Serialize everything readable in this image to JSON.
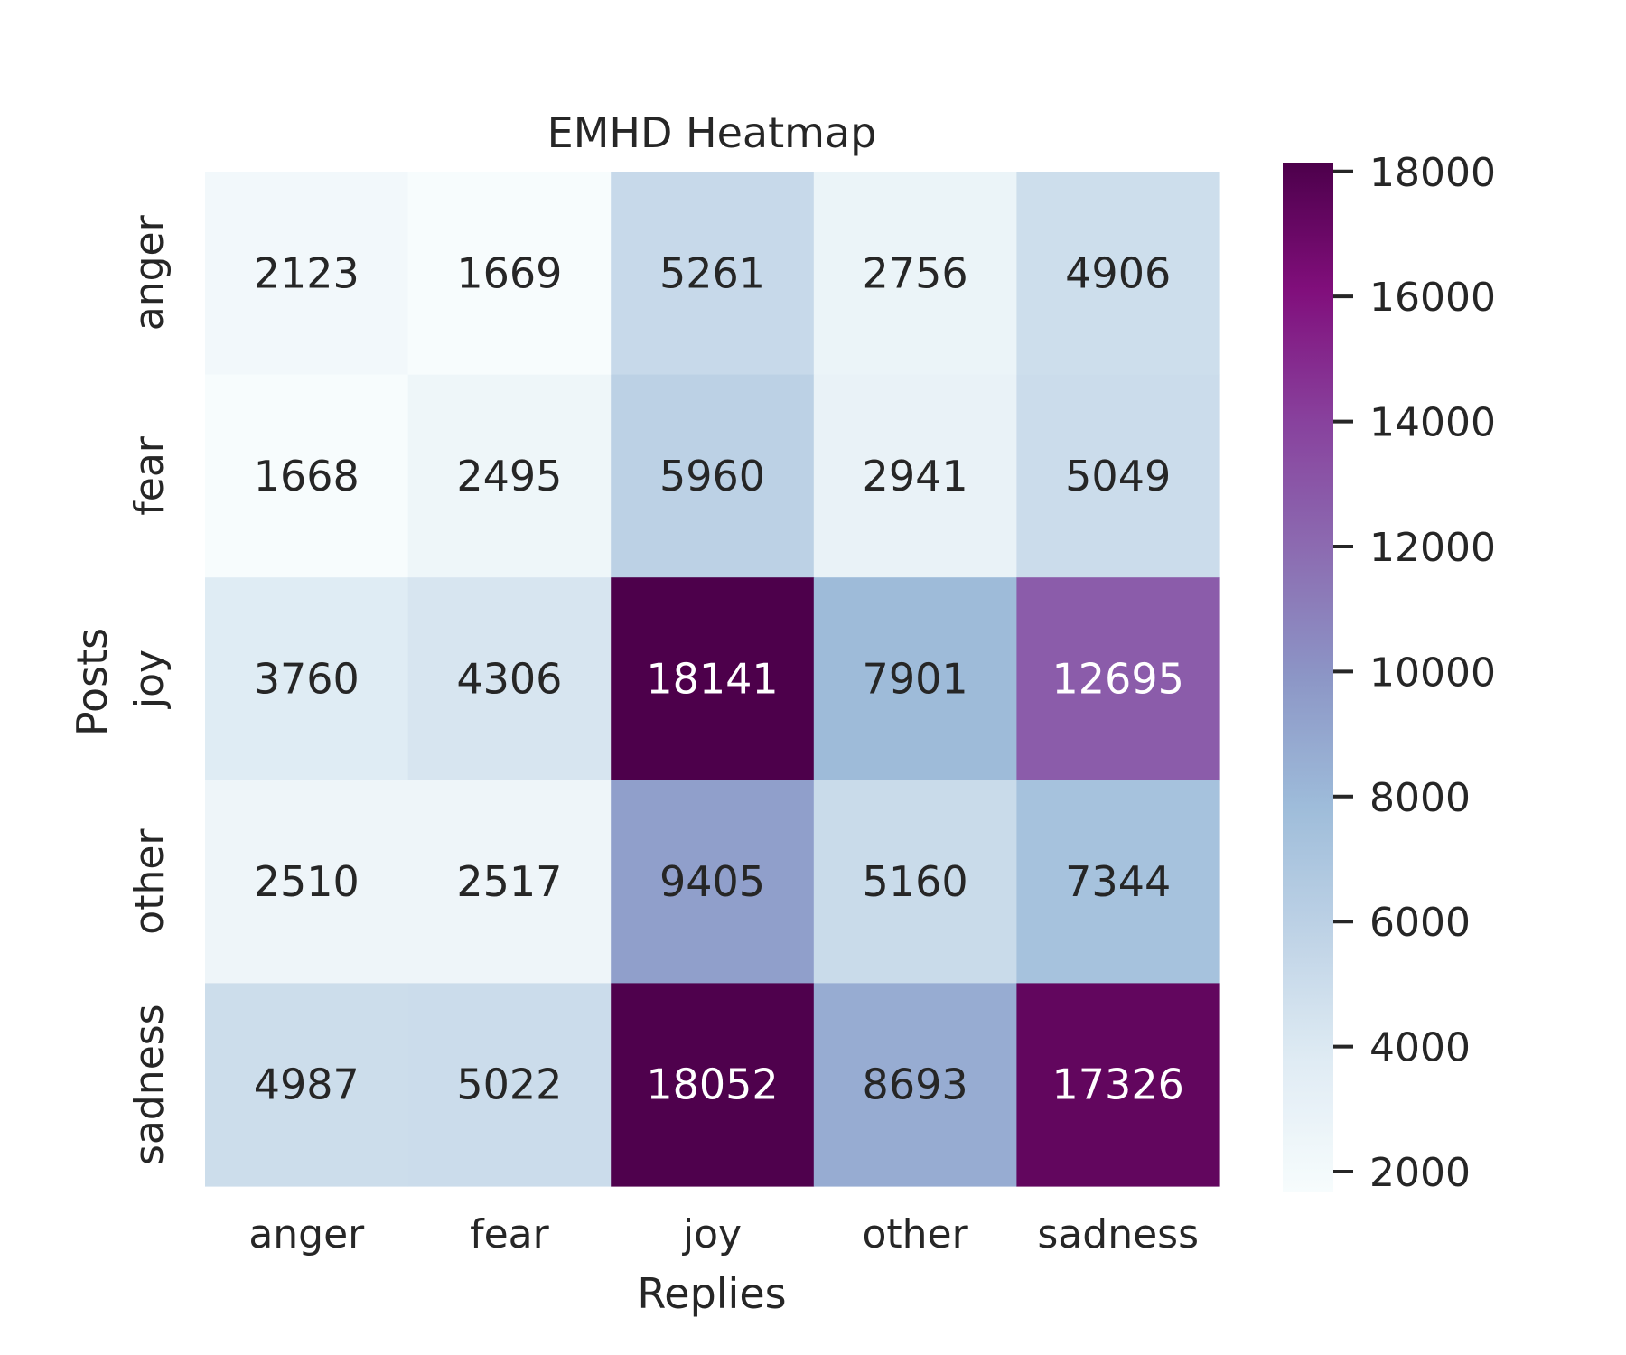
{
  "chart_data": {
    "type": "heatmap",
    "title": "EMHD Heatmap",
    "xlabel": "Replies",
    "ylabel": "Posts",
    "x_categories": [
      "anger",
      "fear",
      "joy",
      "other",
      "sadness"
    ],
    "y_categories": [
      "anger",
      "fear",
      "joy",
      "other",
      "sadness"
    ],
    "values": [
      [
        2123,
        1669,
        5261,
        2756,
        4906
      ],
      [
        1668,
        2495,
        5960,
        2941,
        5049
      ],
      [
        3760,
        4306,
        18141,
        7901,
        12695
      ],
      [
        2510,
        2517,
        9405,
        5160,
        7344
      ],
      [
        4987,
        5022,
        18052,
        8693,
        17326
      ]
    ],
    "colorbar": {
      "range": [
        1668,
        18141
      ],
      "ticks": [
        2000,
        4000,
        6000,
        8000,
        10000,
        12000,
        14000,
        16000,
        18000
      ]
    },
    "colormap": "BuPu",
    "colors": {
      "text_dark": "#262626",
      "text_light": "#ffffff"
    }
  }
}
